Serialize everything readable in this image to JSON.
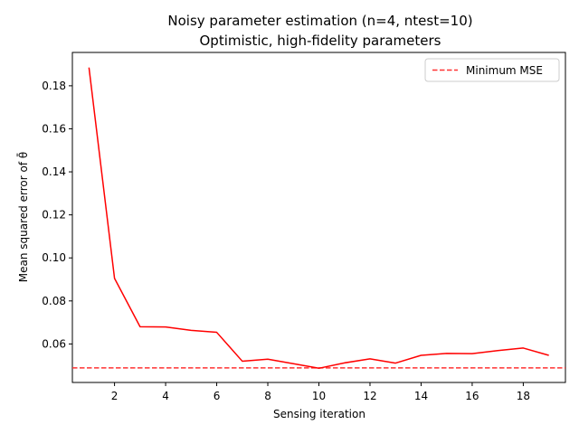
{
  "chart_data": {
    "type": "line",
    "title": "Noisy parameter estimation (n=4, ntest=10)",
    "subtitle": "Optimistic, high-fidelity parameters",
    "xlabel": "Sensing iteration",
    "ylabel": "Mean squared error of θ̄",
    "xlim": [
      0.35,
      19.65
    ],
    "ylim": [
      0.0421,
      0.1955
    ],
    "xticks": [
      2,
      4,
      6,
      8,
      10,
      12,
      14,
      16,
      18
    ],
    "yticks": [
      0.06,
      0.08,
      0.1,
      0.12,
      0.14,
      0.16,
      0.18
    ],
    "ytick_labels": [
      "0.06",
      "0.08",
      "0.10",
      "0.12",
      "0.14",
      "0.16",
      "0.18"
    ],
    "grid": false,
    "legend_position": "top-right",
    "series": [
      {
        "color": "#ff0000",
        "style": "solid",
        "x": [
          1,
          2,
          3,
          4,
          5,
          6,
          7,
          8,
          9,
          10,
          11,
          12,
          13,
          14,
          15,
          16,
          17,
          18,
          19
        ],
        "y": [
          0.1885,
          0.0905,
          0.068,
          0.0679,
          0.0663,
          0.0654,
          0.052,
          0.0529,
          0.0508,
          0.0487,
          0.0512,
          0.0531,
          0.0511,
          0.0547,
          0.0556,
          0.0555,
          0.0569,
          0.0581,
          0.0547
        ]
      }
    ],
    "reference_lines": [
      {
        "name": "Minimum MSE",
        "orientation": "horizontal",
        "value": 0.0489,
        "color": "#ff3333",
        "style": "dashed"
      }
    ]
  }
}
